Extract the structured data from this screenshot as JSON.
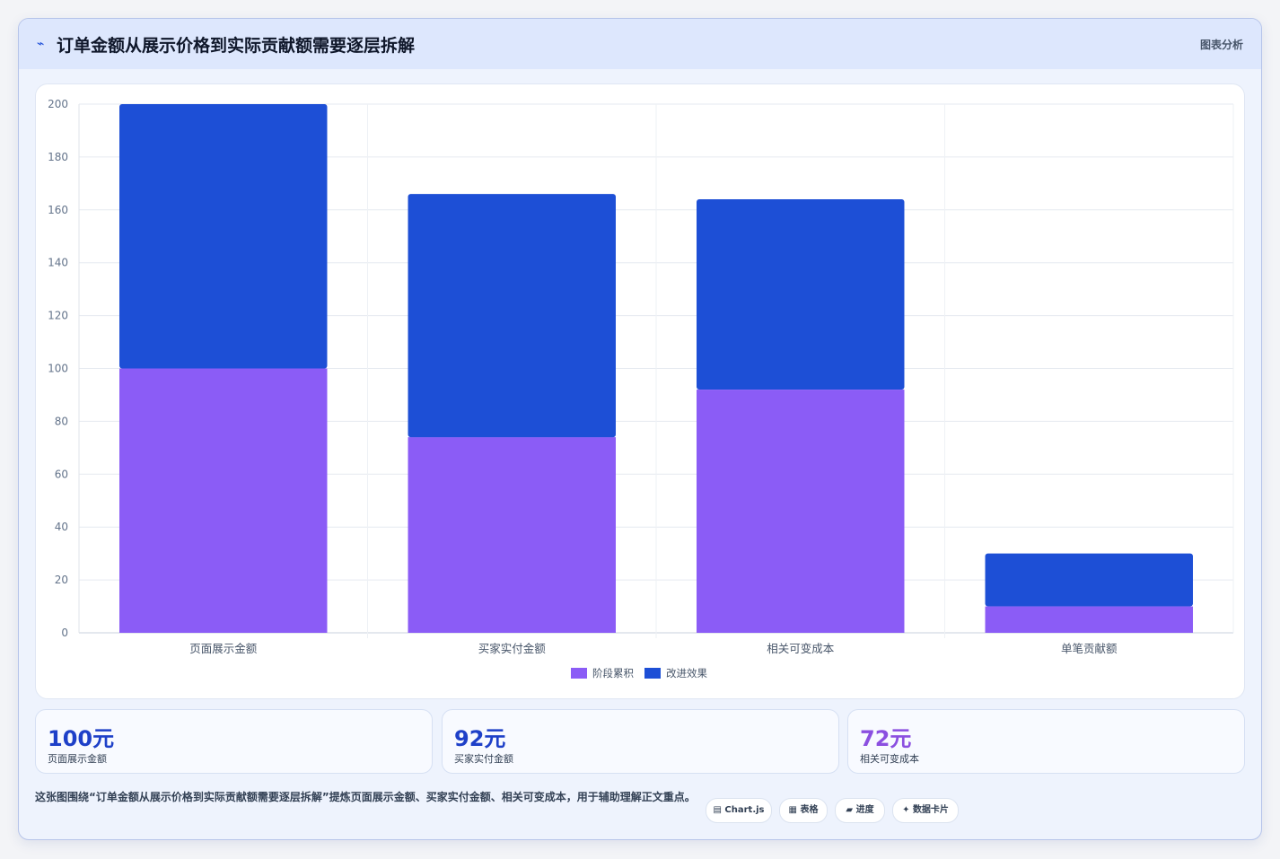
{
  "header": {
    "title": "订单金额从展示价格到实际贡献额需要逐层拆解",
    "link_label": "图表分析"
  },
  "chart_data": {
    "type": "bar",
    "stacked": true,
    "title": "",
    "xlabel": "",
    "ylabel": "",
    "categories": [
      "页面展示金额",
      "买家实付金额",
      "相关可变成本",
      "单笔贡献额"
    ],
    "series": [
      {
        "name": "阶段累积",
        "color": "#8b5cf6",
        "values": [
          100,
          74,
          92,
          10
        ]
      },
      {
        "name": "改进效果",
        "color": "#1d4fd6",
        "values": [
          100,
          92,
          72,
          20
        ]
      }
    ],
    "ylim": [
      0,
      200
    ],
    "yticks": [
      0,
      20,
      40,
      60,
      80,
      100,
      120,
      140,
      160,
      180,
      200
    ],
    "grid": true,
    "legend_position": "bottom"
  },
  "stats": [
    {
      "value": "100元",
      "label": "页面展示金额",
      "color": "#1e40c8"
    },
    {
      "value": "92元",
      "label": "买家实付金额",
      "color": "#1e40c8"
    },
    {
      "value": "72元",
      "label": "相关可变成本",
      "color": "#8b4fe0"
    }
  ],
  "footnote": "这张图围绕“订单金额从展示价格到实际贡献额需要逐层拆解”提炼页面展示金额、买家实付金额、相关可变成本，用于辅助理解正文重点。",
  "chips": [
    {
      "icon": "▤",
      "label": "Chart.js"
    },
    {
      "icon": "▦",
      "label": "表格"
    },
    {
      "icon": "▰",
      "label": "进度"
    },
    {
      "icon": "✦",
      "label": "数据卡片"
    }
  ]
}
